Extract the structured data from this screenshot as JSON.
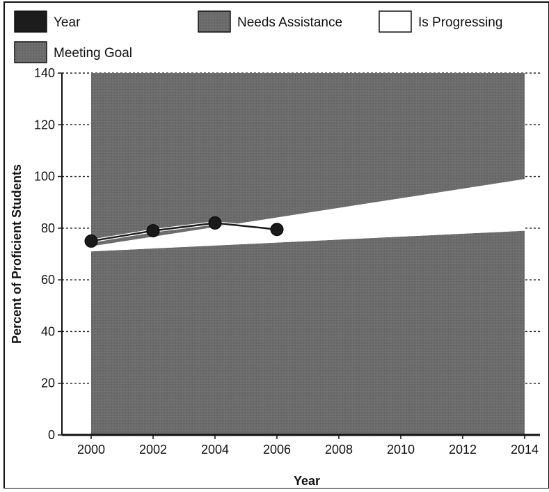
{
  "chart_data": {
    "type": "area",
    "xlabel": "Year",
    "ylabel": "Percent of Proficient Students",
    "xlim": [
      2000,
      2014
    ],
    "ylim": [
      0,
      140
    ],
    "x_ticks": [
      "2000",
      "2002",
      "2004",
      "2006",
      "2008",
      "2010",
      "2012",
      "2014"
    ],
    "y_ticks": [
      "0",
      "20",
      "40",
      "60",
      "80",
      "100",
      "120",
      "140"
    ],
    "grid": "dashed horizontal at y ticks (outside shaded region)",
    "legend_placement": "top",
    "legend": [
      {
        "label": "Year",
        "color": "#1a1a1a",
        "swatch": "dark"
      },
      {
        "label": "Needs Assistance",
        "color": "#6e6e6e",
        "swatch": "shade"
      },
      {
        "label": "Is Progressing",
        "color": "#ffffff",
        "swatch": "white"
      },
      {
        "label": "Meeting Goal",
        "color": "#8a8a8a",
        "swatch": "shade"
      }
    ],
    "bands": [
      {
        "name": "Needs Assistance",
        "x": [
          2000,
          2014
        ],
        "lower": [
          0,
          0
        ],
        "upper": [
          71,
          79
        ],
        "color": "#6a6a6a"
      },
      {
        "name": "Is Progressing",
        "x": [
          2000,
          2014
        ],
        "lower": [
          71,
          79
        ],
        "upper": [
          73,
          99
        ],
        "color": "#ffffff"
      },
      {
        "name": "Meeting Goal",
        "x": [
          2000,
          2014
        ],
        "lower": [
          73,
          99
        ],
        "upper": [
          140,
          140
        ],
        "color": "#6f6f6f"
      }
    ],
    "series": [
      {
        "name": "Year",
        "x": [
          2000,
          2002,
          2004,
          2006
        ],
        "values": [
          75,
          79,
          82,
          79.5
        ],
        "color": "#1a1a1a"
      }
    ]
  }
}
